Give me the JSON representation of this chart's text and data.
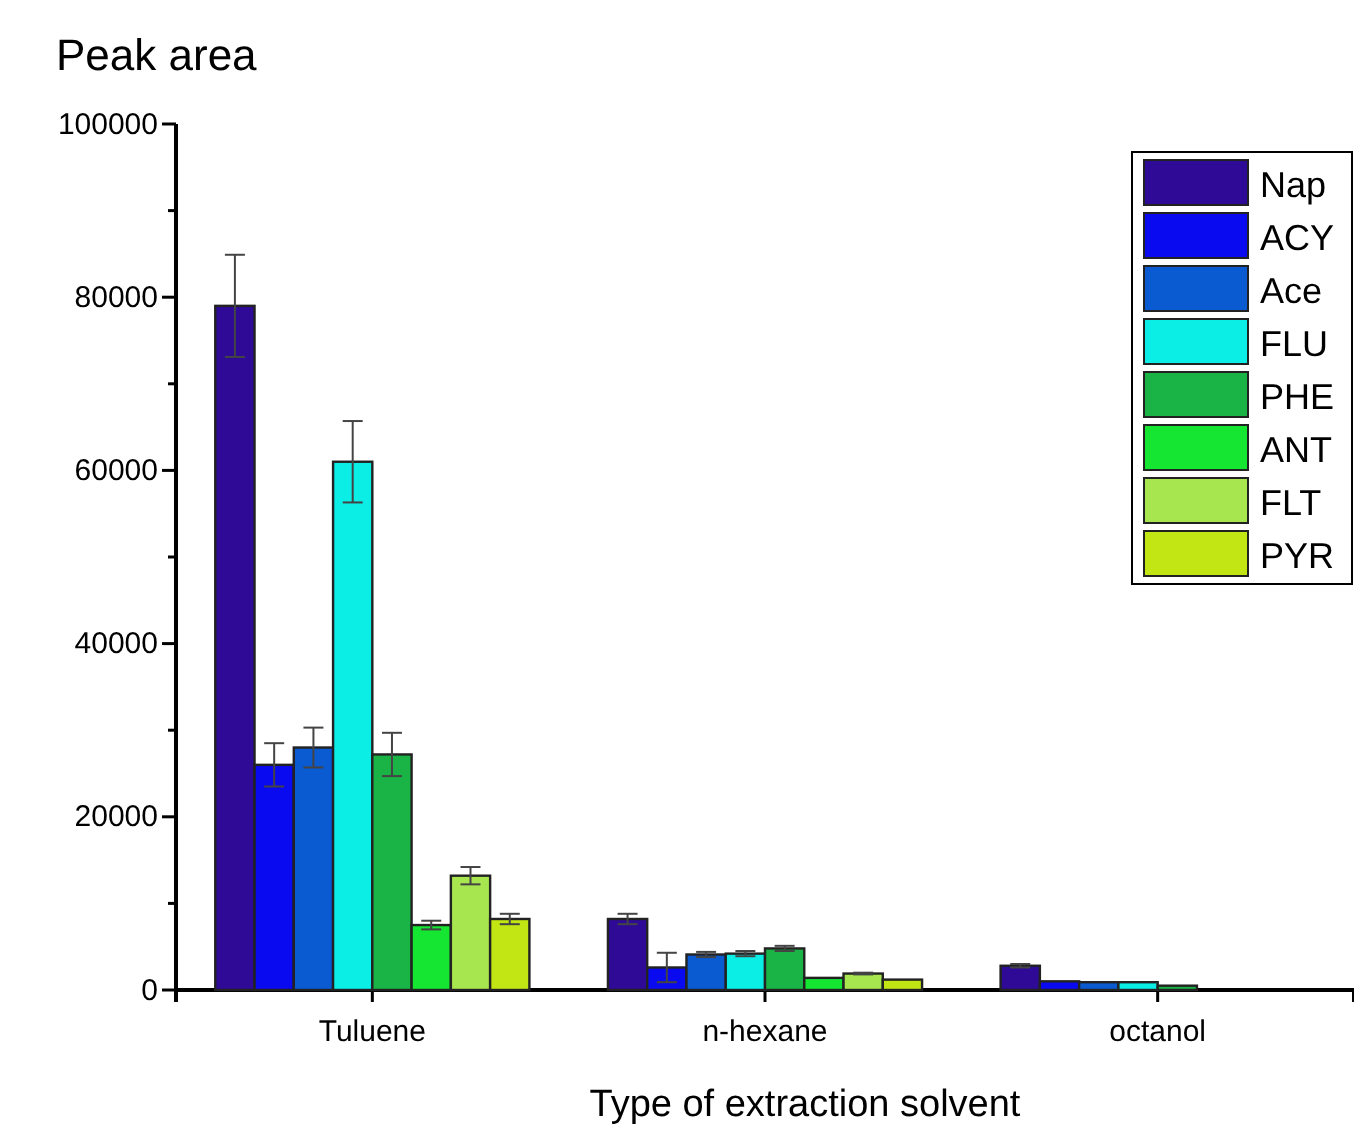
{
  "chart_data": {
    "type": "bar",
    "ylabel": "Peak area",
    "xlabel": "Type of extraction solvent",
    "categories": [
      "Tuluene",
      "n-hexane",
      "octanol"
    ],
    "ylim": [
      0,
      100000
    ],
    "yticks": [
      0,
      {
        "value": 10000,
        "label": null
      },
      20000,
      {
        "value": 30000,
        "label": null
      },
      40000,
      {
        "value": 50000,
        "label": null
      },
      60000,
      {
        "value": 70000,
        "label": null
      },
      80000,
      {
        "value": 90000,
        "label": null
      },
      100000
    ],
    "legend": "top right",
    "grid": false,
    "series": [
      {
        "name": "Nap",
        "color": "#2e0a96",
        "values": [
          79000,
          8200,
          2800
        ],
        "errors": [
          5900,
          600,
          200
        ]
      },
      {
        "name": "ACY",
        "color": "#0a0af0",
        "values": [
          26000,
          2600,
          1000
        ],
        "errors": [
          2500,
          1700,
          null
        ]
      },
      {
        "name": "Ace",
        "color": "#0a5ad2",
        "values": [
          28000,
          4100,
          900
        ],
        "errors": [
          2300,
          300,
          null
        ]
      },
      {
        "name": "FLU",
        "color": "#0aeee6",
        "values": [
          61000,
          4200,
          900
        ],
        "errors": [
          4700,
          300,
          null
        ]
      },
      {
        "name": "PHE",
        "color": "#1ab446",
        "values": [
          27200,
          4800,
          500
        ],
        "errors": [
          2500,
          300,
          null
        ]
      },
      {
        "name": "ANT",
        "color": "#14e632",
        "values": [
          7500,
          1400,
          0
        ],
        "errors": [
          500,
          null,
          null
        ]
      },
      {
        "name": "FLT",
        "color": "#a8e650",
        "values": [
          13200,
          1900,
          0
        ],
        "errors": [
          1000,
          100,
          null
        ]
      },
      {
        "name": "PYR",
        "color": "#c2e614",
        "values": [
          8200,
          1200,
          0
        ],
        "errors": [
          600,
          null,
          null
        ]
      }
    ]
  }
}
